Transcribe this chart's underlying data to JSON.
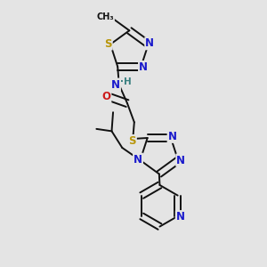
{
  "bg_color": "#e4e4e4",
  "bond_color": "#111111",
  "bond_width": 1.4,
  "dbo": 0.012,
  "atom_colors": {
    "N": "#1a1acc",
    "S": "#b8960a",
    "O": "#cc1a1a",
    "C": "#111111",
    "H": "#3a8080"
  },
  "fs": 8.5,
  "fs_small": 7.0,
  "xlim": [
    0.05,
    0.95
  ],
  "ylim": [
    0.02,
    0.98
  ]
}
